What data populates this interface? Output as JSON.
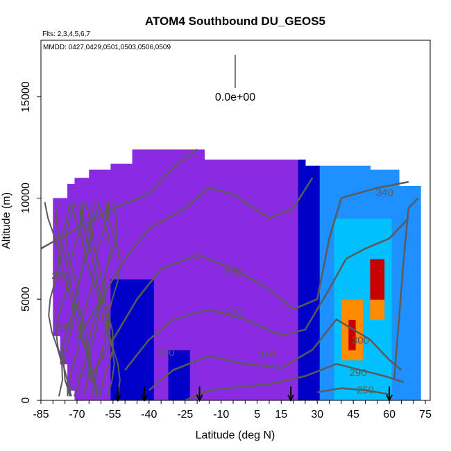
{
  "chart_data": {
    "type": "heatmap",
    "title": "ATOM4 Southbound DU_GEOS5",
    "subtitle_flights": "Flts: 2,3,4,5,6,7",
    "subtitle_dates": "MMDD: 0427,0429,0501,0503,0506,0509",
    "xlabel": "Latitude (deg N)",
    "ylabel": "Altitude (m)",
    "xlim": [
      -85,
      77
    ],
    "ylim": [
      0,
      17800
    ],
    "x_ticks": [
      -85,
      -70,
      -55,
      -40,
      -25,
      -10,
      5,
      15,
      30,
      45,
      60,
      75
    ],
    "x_tick_labels": [
      "-85",
      "-70",
      "-55",
      "-40",
      "-25",
      "-10",
      "5",
      "15",
      "30",
      "45",
      "60",
      "75"
    ],
    "y_ticks": [
      0,
      5000,
      10000,
      15000
    ],
    "y_tick_labels": [
      "0",
      "5000",
      "10000",
      "15000"
    ],
    "scale_legend_label": "0.0e+00",
    "flight_markers_lat": [
      -53,
      -42,
      -19,
      19,
      60
    ],
    "contour_labels": [
      {
        "text": "340",
        "lat": 58,
        "alt": 10100
      },
      {
        "text": "330",
        "lat": -5,
        "alt": 6200
      },
      {
        "text": "320",
        "lat": -5,
        "alt": 4200
      },
      {
        "text": "310",
        "lat": 9,
        "alt": 2100
      },
      {
        "text": "300",
        "lat": -33,
        "alt": 2200
      },
      {
        "text": "300",
        "lat": 48,
        "alt": 2800
      },
      {
        "text": "290",
        "lat": -77,
        "alt": 6000
      },
      {
        "text": "290",
        "lat": 47,
        "alt": 1200
      },
      {
        "text": "280",
        "lat": -76,
        "alt": 3500
      },
      {
        "text": "250",
        "lat": 50,
        "alt": 350
      },
      {
        "text": "270",
        "lat": -67,
        "alt": 1100
      }
    ],
    "colors": {
      "background_field": "#8a2be2",
      "deep_blue": "#0000c8",
      "sky_blue": "#1e90ff",
      "cyan": "#00c0ff",
      "high": "#ff8c00",
      "peak": "#c80000",
      "contour": "#5a5a5a"
    }
  }
}
